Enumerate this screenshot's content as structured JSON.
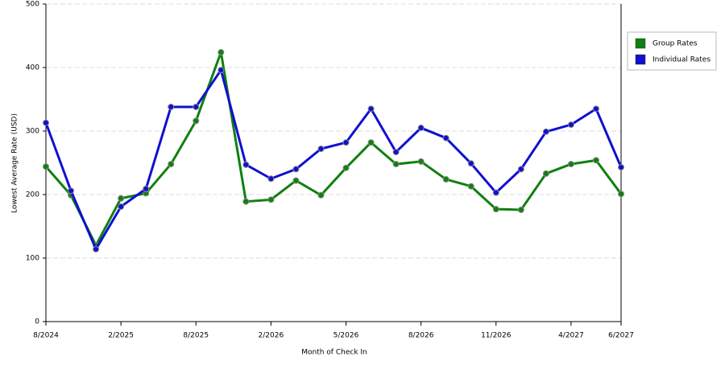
{
  "chart_data": {
    "type": "line",
    "y_label": "Lowest Average Rate (USD)",
    "x_label": "Month of Check In",
    "categories": [
      "8/2024",
      null,
      null,
      "2/2025",
      null,
      null,
      "8/2025",
      null,
      null,
      "2/2026",
      null,
      null,
      "5/2026",
      null,
      null,
      "8/2026",
      null,
      null,
      "11/2026",
      null,
      null,
      "4/2027",
      null,
      "6/2027"
    ],
    "series": [
      {
        "name": "Group Rates",
        "color": "#108010",
        "values": [
          244,
          199,
          120,
          194,
          202,
          248,
          316,
          424,
          189,
          192,
          222,
          199,
          242,
          282,
          248,
          252,
          224,
          213,
          177,
          176,
          233,
          248,
          254,
          201
        ]
      },
      {
        "name": "Individual Rates",
        "color": "#1010d0",
        "values": [
          313,
          206,
          114,
          181,
          209,
          338,
          338,
          396,
          247,
          225,
          240,
          272,
          282,
          335,
          267,
          305,
          289,
          249,
          203,
          240,
          299,
          310,
          335,
          243
        ]
      }
    ],
    "ylim": [
      0,
      500
    ],
    "yticks": [
      0,
      100,
      200,
      300,
      400,
      500
    ],
    "grid": true,
    "legend": "right"
  }
}
